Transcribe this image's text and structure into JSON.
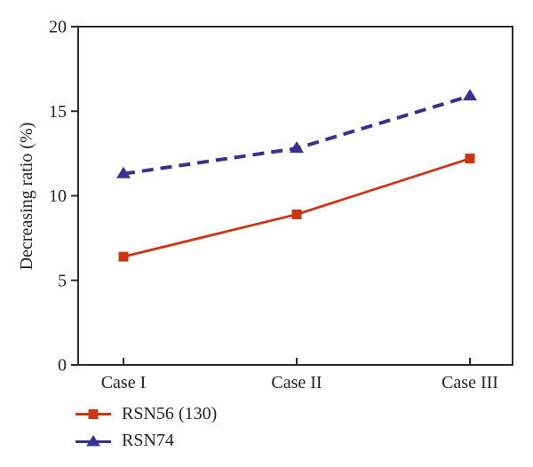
{
  "figure": {
    "background": "#ffffff"
  },
  "chart_data": {
    "type": "line",
    "title": "",
    "categories": [
      "Case I",
      "Case II",
      "Case III"
    ],
    "series": [
      {
        "name": "RSN56 (130)",
        "values": [
          6.4,
          8.9,
          12.2
        ],
        "color": "#cd3514",
        "marker": "square",
        "line_style": "solid"
      },
      {
        "name": "RSN74",
        "values": [
          11.3,
          12.8,
          15.9
        ],
        "color": "#39318f",
        "marker": "triangle",
        "line_style": "dashed"
      }
    ],
    "xlabel": "",
    "ylabel": "Decreasing ratio (%)",
    "ylim": [
      0,
      20
    ],
    "yticks": [
      0,
      5,
      10,
      15,
      20
    ],
    "grid": false,
    "frame": true,
    "legend_position": "bottom-left"
  },
  "colors": {
    "axis": "#2b2b2b",
    "text": "#232323"
  }
}
